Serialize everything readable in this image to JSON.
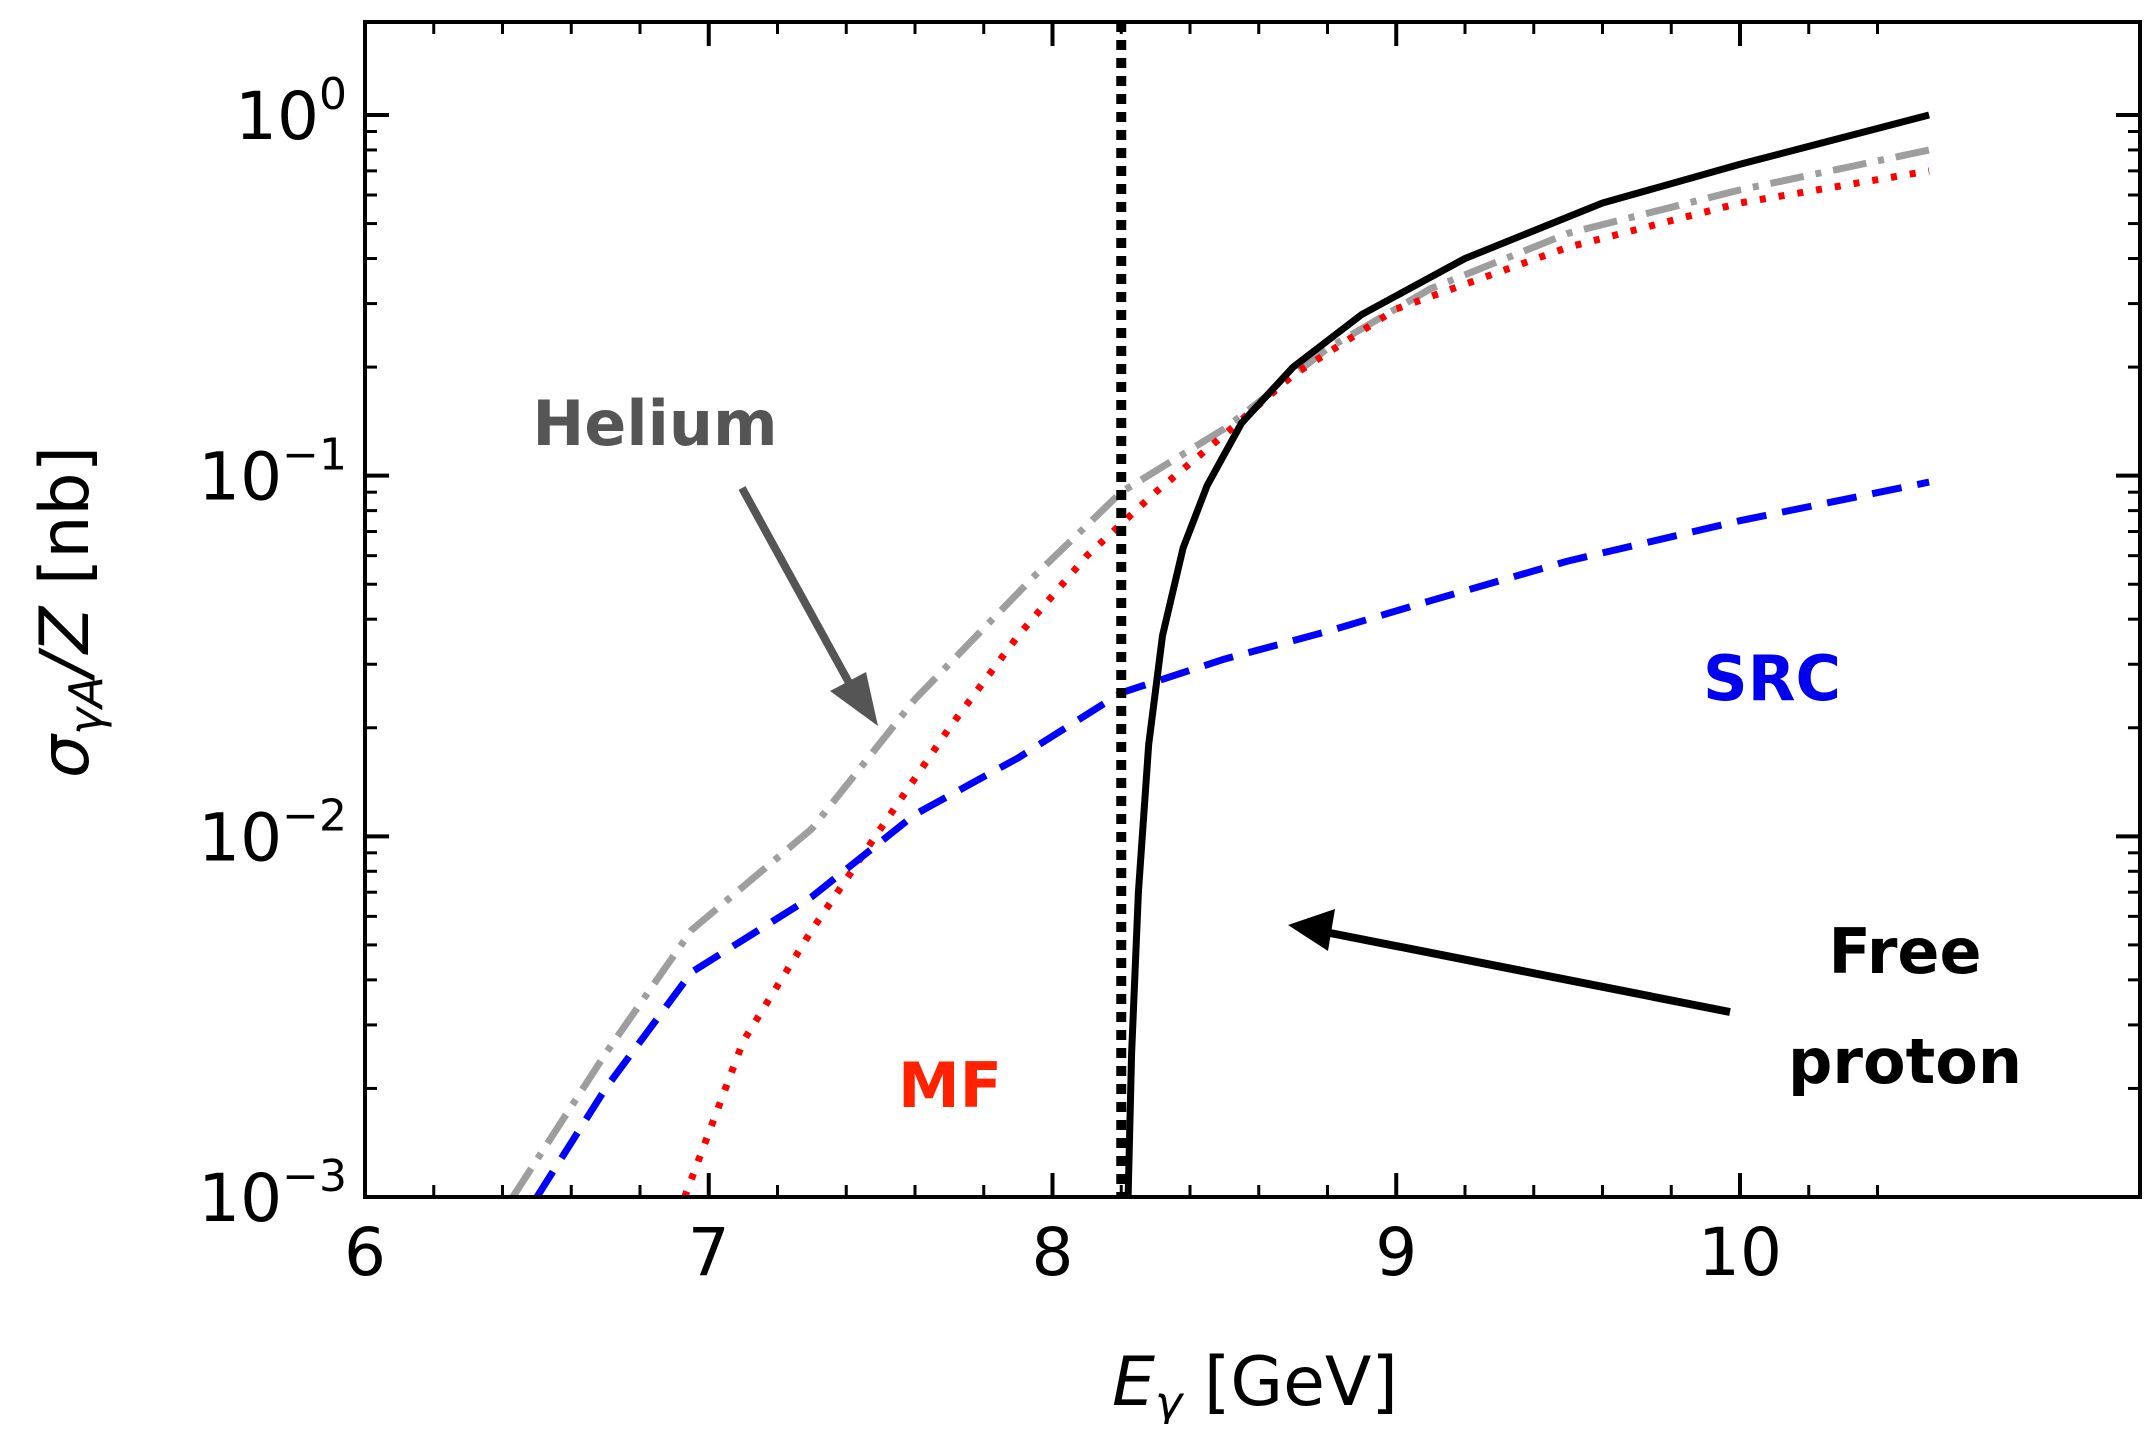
{
  "chart_data": {
    "type": "line",
    "xlabel": {
      "main": "E",
      "sub": "γ",
      "unit": " [GeV]"
    },
    "ylabel": {
      "main": "σ",
      "sub": "γA",
      "rest": "/Z",
      "unit": " [nb]"
    },
    "xlim": [
      6,
      10.55
    ],
    "ylim": [
      0.001,
      1.3
    ],
    "yscale": "log",
    "grid": false,
    "xticks": [
      {
        "value": 6,
        "label": "6"
      },
      {
        "value": 7,
        "label": "7"
      },
      {
        "value": 8,
        "label": "8"
      },
      {
        "value": 9,
        "label": "9"
      },
      {
        "value": 10,
        "label": "10"
      }
    ],
    "yticks": [
      {
        "value": 0.001,
        "base": "10",
        "exp": "−3"
      },
      {
        "value": 0.01,
        "base": "10",
        "exp": "−2"
      },
      {
        "value": 0.1,
        "base": "10",
        "exp": "−1"
      },
      {
        "value": 1,
        "base": "10",
        "exp": "0"
      }
    ],
    "threshold_line": {
      "x": 8.2,
      "style": "dotted",
      "color": "#000000"
    },
    "series": [
      {
        "color": "#9e9e9e",
        "style": "dashdot",
        "x": [
          6.43,
          6.7,
          6.95,
          7.3,
          7.6,
          7.95,
          8.2,
          8.5,
          8.8,
          9.1,
          9.5,
          10.0,
          10.55
        ],
        "y": [
          0.001,
          0.0025,
          0.0055,
          0.0105,
          0.024,
          0.053,
          0.09,
          0.135,
          0.225,
          0.33,
          0.47,
          0.62,
          0.8
        ]
      },
      {
        "color": "#ff0000",
        "style": "dotted",
        "x": [
          6.93,
          7.1,
          7.3,
          7.5,
          7.7,
          7.9,
          8.1,
          8.3,
          8.5,
          8.7,
          9.0,
          9.5,
          10.0,
          10.55
        ],
        "y": [
          0.001,
          0.0027,
          0.0055,
          0.0105,
          0.02,
          0.036,
          0.06,
          0.09,
          0.13,
          0.19,
          0.29,
          0.43,
          0.57,
          0.7
        ]
      },
      {
        "color": "#0000ff",
        "style": "dashed",
        "x": [
          6.5,
          6.7,
          6.95,
          7.3,
          7.6,
          7.9,
          8.2,
          8.5,
          8.8,
          9.1,
          9.5,
          10.0,
          10.55
        ],
        "y": [
          0.001,
          0.002,
          0.0042,
          0.0068,
          0.0115,
          0.0165,
          0.025,
          0.031,
          0.037,
          0.045,
          0.058,
          0.075,
          0.096
        ]
      },
      {
        "color": "#000000",
        "style": "solid",
        "x": [
          8.22,
          8.23,
          8.25,
          8.28,
          8.32,
          8.38,
          8.45,
          8.55,
          8.7,
          8.9,
          9.2,
          9.6,
          10.0,
          10.55
        ],
        "y": [
          0.001,
          0.0025,
          0.007,
          0.018,
          0.036,
          0.063,
          0.094,
          0.14,
          0.2,
          0.28,
          0.4,
          0.57,
          0.73,
          1.0
        ]
      }
    ],
    "annotations": [
      {
        "id": "helium",
        "text": "Helium",
        "color": "#555555"
      },
      {
        "id": "mf",
        "text": "MF",
        "color": "#ff2200"
      },
      {
        "id": "src",
        "text": "SRC",
        "color": "#0000ee"
      },
      {
        "id": "free1",
        "text": "Free",
        "color": "#000000"
      },
      {
        "id": "free2",
        "text": "proton",
        "color": "#000000"
      }
    ],
    "arrows": [
      {
        "id": "helium-arrow",
        "color": "#555555"
      },
      {
        "id": "proton-arrow",
        "color": "#000000"
      }
    ]
  }
}
